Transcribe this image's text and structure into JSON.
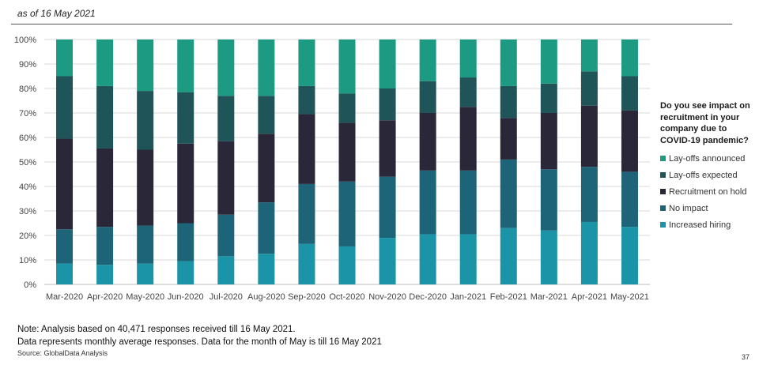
{
  "header": {
    "date_label": "as of 16 May 2021"
  },
  "chart_data": {
    "type": "bar",
    "stacked": true,
    "percent": true,
    "categories": [
      "Mar-2020",
      "Apr-2020",
      "May-2020",
      "Jun-2020",
      "Jul-2020",
      "Aug-2020",
      "Sep-2020",
      "Oct-2020",
      "Nov-2020",
      "Dec-2020",
      "Jan-2021",
      "Feb-2021",
      "Mar-2021",
      "Apr-2021",
      "May-2021"
    ],
    "y_ticks": [
      "0%",
      "10%",
      "20%",
      "30%",
      "40%",
      "50%",
      "60%",
      "70%",
      "80%",
      "90%",
      "100%"
    ],
    "ylim": [
      0,
      100
    ],
    "legend_title": "Do you see impact on recruitment in your company due to COVID-19 pandemic?",
    "legend_position": "right",
    "series": [
      {
        "name": "Increased hiring",
        "color": "#1a94a6",
        "values": [
          8.5,
          8.0,
          8.5,
          9.5,
          11.5,
          12.5,
          16.5,
          15.5,
          19.0,
          20.5,
          20.5,
          23.0,
          22.0,
          25.5,
          23.5
        ]
      },
      {
        "name": "No impact",
        "color": "#1e6478",
        "values": [
          14.0,
          15.5,
          15.5,
          15.5,
          17.0,
          21.0,
          24.5,
          26.5,
          25.0,
          26.0,
          26.0,
          28.0,
          25.0,
          22.5,
          22.5
        ]
      },
      {
        "name": "Recruitment on hold",
        "color": "#2a2838",
        "values": [
          37.0,
          32.0,
          31.0,
          32.5,
          30.0,
          28.0,
          28.5,
          24.0,
          23.0,
          23.5,
          26.0,
          17.0,
          23.0,
          25.0,
          25.0
        ]
      },
      {
        "name": "Lay-offs expected",
        "color": "#1f5458",
        "values": [
          25.5,
          25.5,
          24.0,
          21.0,
          18.5,
          15.5,
          11.5,
          12.0,
          13.0,
          13.0,
          12.0,
          13.0,
          12.0,
          14.0,
          14.0
        ]
      },
      {
        "name": "Lay-offs announced",
        "color": "#1d9b82",
        "values": [
          15.0,
          19.0,
          21.0,
          21.5,
          23.0,
          23.0,
          19.0,
          22.0,
          20.0,
          17.0,
          15.5,
          19.0,
          18.0,
          13.0,
          15.0
        ]
      }
    ]
  },
  "notes": {
    "line1": "Note: Analysis based on 40,471 responses received till 16 May 2021.",
    "line2": "Data represents monthly average responses. Data for the month of May is till 16 May 2021"
  },
  "source": "Source: GlobalData Analysis",
  "page_number": "37"
}
